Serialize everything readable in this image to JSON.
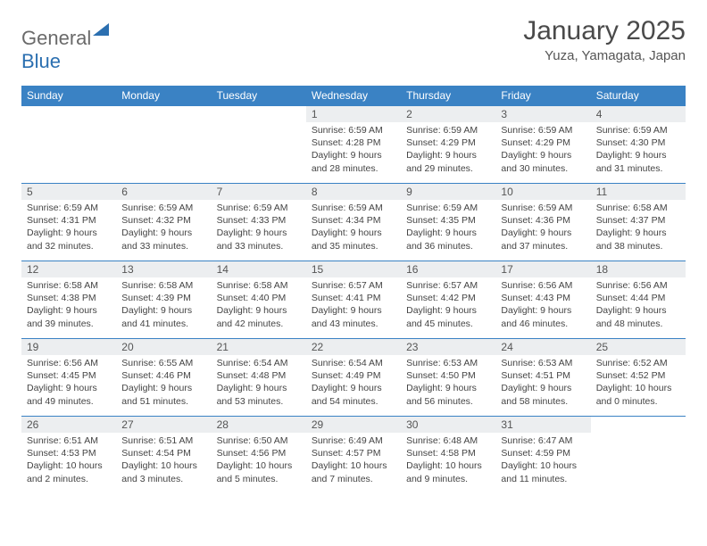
{
  "brand": {
    "name_a": "General",
    "name_b": "Blue"
  },
  "title": "January 2025",
  "location": "Yuza, Yamagata, Japan",
  "colors": {
    "header_bg": "#3a82c4",
    "header_text": "#ffffff",
    "daynum_bg": "#eceef0",
    "accent": "#2b6fb0",
    "text": "#444444"
  },
  "weekdays": [
    "Sunday",
    "Monday",
    "Tuesday",
    "Wednesday",
    "Thursday",
    "Friday",
    "Saturday"
  ],
  "weeks": [
    [
      null,
      null,
      null,
      {
        "n": "1",
        "sr": "6:59 AM",
        "ss": "4:28 PM",
        "dl": "9 hours and 28 minutes."
      },
      {
        "n": "2",
        "sr": "6:59 AM",
        "ss": "4:29 PM",
        "dl": "9 hours and 29 minutes."
      },
      {
        "n": "3",
        "sr": "6:59 AM",
        "ss": "4:29 PM",
        "dl": "9 hours and 30 minutes."
      },
      {
        "n": "4",
        "sr": "6:59 AM",
        "ss": "4:30 PM",
        "dl": "9 hours and 31 minutes."
      }
    ],
    [
      {
        "n": "5",
        "sr": "6:59 AM",
        "ss": "4:31 PM",
        "dl": "9 hours and 32 minutes."
      },
      {
        "n": "6",
        "sr": "6:59 AM",
        "ss": "4:32 PM",
        "dl": "9 hours and 33 minutes."
      },
      {
        "n": "7",
        "sr": "6:59 AM",
        "ss": "4:33 PM",
        "dl": "9 hours and 33 minutes."
      },
      {
        "n": "8",
        "sr": "6:59 AM",
        "ss": "4:34 PM",
        "dl": "9 hours and 35 minutes."
      },
      {
        "n": "9",
        "sr": "6:59 AM",
        "ss": "4:35 PM",
        "dl": "9 hours and 36 minutes."
      },
      {
        "n": "10",
        "sr": "6:59 AM",
        "ss": "4:36 PM",
        "dl": "9 hours and 37 minutes."
      },
      {
        "n": "11",
        "sr": "6:58 AM",
        "ss": "4:37 PM",
        "dl": "9 hours and 38 minutes."
      }
    ],
    [
      {
        "n": "12",
        "sr": "6:58 AM",
        "ss": "4:38 PM",
        "dl": "9 hours and 39 minutes."
      },
      {
        "n": "13",
        "sr": "6:58 AM",
        "ss": "4:39 PM",
        "dl": "9 hours and 41 minutes."
      },
      {
        "n": "14",
        "sr": "6:58 AM",
        "ss": "4:40 PM",
        "dl": "9 hours and 42 minutes."
      },
      {
        "n": "15",
        "sr": "6:57 AM",
        "ss": "4:41 PM",
        "dl": "9 hours and 43 minutes."
      },
      {
        "n": "16",
        "sr": "6:57 AM",
        "ss": "4:42 PM",
        "dl": "9 hours and 45 minutes."
      },
      {
        "n": "17",
        "sr": "6:56 AM",
        "ss": "4:43 PM",
        "dl": "9 hours and 46 minutes."
      },
      {
        "n": "18",
        "sr": "6:56 AM",
        "ss": "4:44 PM",
        "dl": "9 hours and 48 minutes."
      }
    ],
    [
      {
        "n": "19",
        "sr": "6:56 AM",
        "ss": "4:45 PM",
        "dl": "9 hours and 49 minutes."
      },
      {
        "n": "20",
        "sr": "6:55 AM",
        "ss": "4:46 PM",
        "dl": "9 hours and 51 minutes."
      },
      {
        "n": "21",
        "sr": "6:54 AM",
        "ss": "4:48 PM",
        "dl": "9 hours and 53 minutes."
      },
      {
        "n": "22",
        "sr": "6:54 AM",
        "ss": "4:49 PM",
        "dl": "9 hours and 54 minutes."
      },
      {
        "n": "23",
        "sr": "6:53 AM",
        "ss": "4:50 PM",
        "dl": "9 hours and 56 minutes."
      },
      {
        "n": "24",
        "sr": "6:53 AM",
        "ss": "4:51 PM",
        "dl": "9 hours and 58 minutes."
      },
      {
        "n": "25",
        "sr": "6:52 AM",
        "ss": "4:52 PM",
        "dl": "10 hours and 0 minutes."
      }
    ],
    [
      {
        "n": "26",
        "sr": "6:51 AM",
        "ss": "4:53 PM",
        "dl": "10 hours and 2 minutes."
      },
      {
        "n": "27",
        "sr": "6:51 AM",
        "ss": "4:54 PM",
        "dl": "10 hours and 3 minutes."
      },
      {
        "n": "28",
        "sr": "6:50 AM",
        "ss": "4:56 PM",
        "dl": "10 hours and 5 minutes."
      },
      {
        "n": "29",
        "sr": "6:49 AM",
        "ss": "4:57 PM",
        "dl": "10 hours and 7 minutes."
      },
      {
        "n": "30",
        "sr": "6:48 AM",
        "ss": "4:58 PM",
        "dl": "10 hours and 9 minutes."
      },
      {
        "n": "31",
        "sr": "6:47 AM",
        "ss": "4:59 PM",
        "dl": "10 hours and 11 minutes."
      },
      null
    ]
  ],
  "labels": {
    "sunrise": "Sunrise:",
    "sunset": "Sunset:",
    "daylight": "Daylight:"
  }
}
